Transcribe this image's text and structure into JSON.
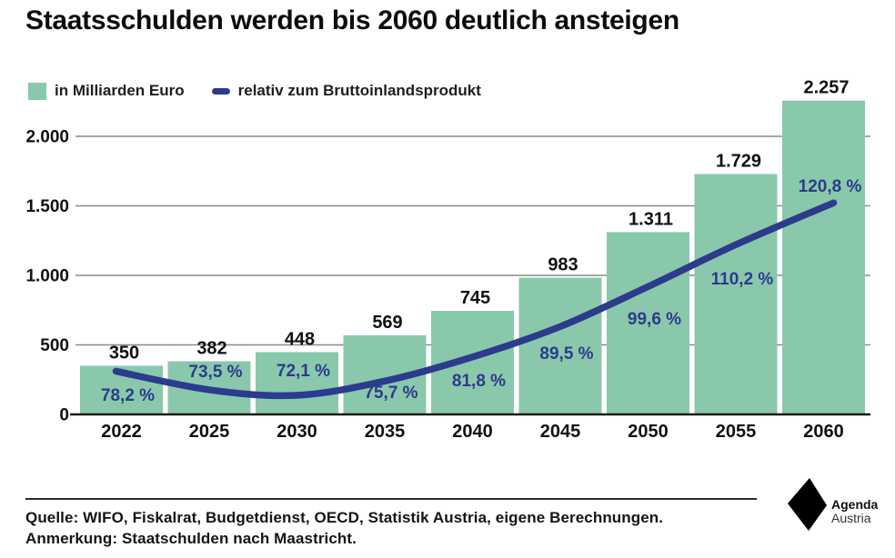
{
  "title": "Staatsschulden werden bis 2060 deutlich ansteigen",
  "legend": {
    "bar_label": "in Milliarden Euro",
    "line_label": "relativ zum Bruttoinlandsprodukt"
  },
  "chart_data": {
    "type": "bar",
    "categories": [
      "2022",
      "2025",
      "2030",
      "2035",
      "2040",
      "2045",
      "2050",
      "2055",
      "2060"
    ],
    "series": [
      {
        "name": "in Milliarden Euro",
        "type": "bar",
        "values": [
          350,
          382,
          448,
          569,
          745,
          983,
          1311,
          1729,
          2257
        ],
        "labels": [
          "350",
          "382",
          "448",
          "569",
          "745",
          "983",
          "1.311",
          "1.729",
          "2.257"
        ],
        "color": "#8AC8AB"
      },
      {
        "name": "relativ zum Bruttoinlandsprodukt",
        "type": "line",
        "values": [
          78.2,
          73.5,
          72.1,
          75.7,
          81.8,
          89.5,
          99.6,
          110.2,
          120.8
        ],
        "labels": [
          "78,2 %",
          "73,5 %",
          "72,1 %",
          "75,7 %",
          "81,8 %",
          "89,5 %",
          "99,6 %",
          "110,2 %",
          "120,8 %"
        ],
        "color": "#2C3B8C"
      }
    ],
    "y_axis": {
      "ticks": [
        0,
        500,
        1000,
        1500,
        2000
      ],
      "tick_labels": [
        "0",
        "500",
        "1.000",
        "1.500",
        "2.000"
      ],
      "ylim": [
        0,
        2300
      ]
    },
    "grid": true,
    "legend_position": "top-left",
    "title": "Staatsschulden werden bis 2060 deutlich ansteigen"
  },
  "footer": {
    "source": "Quelle: WIFO, Fiskalrat, Budgetdienst, OECD, Statistik Austria, eigene Berechnungen.",
    "note": "Anmerkung: Staatschulden nach Maastricht."
  },
  "logo": {
    "name": "Agenda",
    "sub": "Austria"
  },
  "colors": {
    "bar": "#8AC8AB",
    "line": "#2C3B8C",
    "grid": "#8A8A8A",
    "axis": "#1a1a1a",
    "text": "#111111"
  }
}
